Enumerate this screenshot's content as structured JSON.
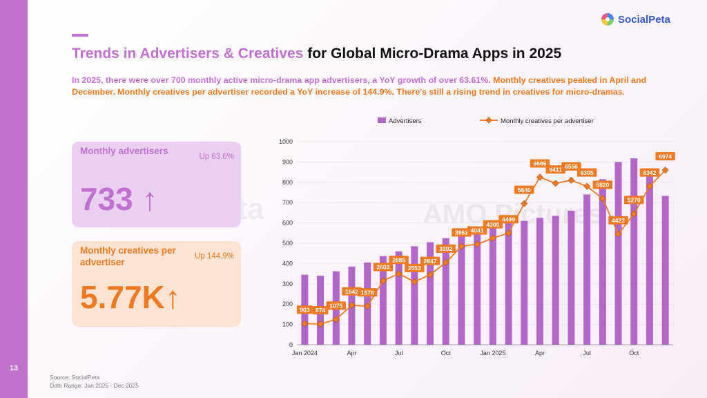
{
  "page_number": "13",
  "brand": {
    "name": "SocialPeta",
    "color": "#3458c8"
  },
  "colors": {
    "accent_purple": "#c071cf",
    "accent_orange": "#f07a22"
  },
  "title": {
    "part1": "Trends in Advertisers & Creatives",
    "part2": " for Global Micro-Drama Apps in 2025"
  },
  "subtitle": {
    "part1": "In 2025, there were over 700 monthly active micro-drama app advertisers, a YoY growth of over 63.61%.",
    "part2": " Monthly creatives peaked in April and December. Monthly creatives per advertiser recorded a YoY increase of 144.9%. There's still a rising trend in creatives for micro-dramas."
  },
  "cards": {
    "advertisers": {
      "label": "Monthly advertisers",
      "growth": "Up 63.6%",
      "value": "733 ↑"
    },
    "creatives": {
      "label": "Monthly creatives per advertiser",
      "growth": "Up 144.9%",
      "value": "5.77K↑"
    }
  },
  "watermarks": {
    "left": "SocialPeta",
    "right": "AMO Pictures"
  },
  "source": {
    "line1": "Source: SocialPeta",
    "line2": "Date Range: Jan 2025 - Dec 2025"
  },
  "chart_data": {
    "type": "bar",
    "title": "",
    "xlabel": "",
    "ylabel": "",
    "ylim": [
      0,
      1000
    ],
    "yticks": [
      0,
      100,
      200,
      300,
      400,
      500,
      600,
      700,
      800,
      900,
      1000
    ],
    "grid": true,
    "legend_position": "top",
    "x_tick_labels": [
      {
        "index": 0,
        "label": "Jan 2024"
      },
      {
        "index": 3,
        "label": "Apr"
      },
      {
        "index": 6,
        "label": "Jul"
      },
      {
        "index": 9,
        "label": "Oct"
      },
      {
        "index": 12,
        "label": "Jan 2025"
      },
      {
        "index": 15,
        "label": "Apr"
      },
      {
        "index": 18,
        "label": "Jul"
      },
      {
        "index": 21,
        "label": "Oct"
      }
    ],
    "categories": [
      "Jan 2024",
      "Feb 2024",
      "Mar 2024",
      "Apr 2024",
      "May 2024",
      "Jun 2024",
      "Jul 2024",
      "Aug 2024",
      "Sep 2024",
      "Oct 2024",
      "Nov 2024",
      "Dec 2024",
      "Jan 2025",
      "Feb 2025",
      "Mar 2025",
      "Apr 2025",
      "May 2025",
      "Jun 2025",
      "Jul 2025",
      "Aug 2025",
      "Sep 2025",
      "Oct 2025",
      "Nov 2025",
      "Dec 2025"
    ],
    "series": [
      {
        "name": "Advertisers",
        "type": "bar",
        "color": "#b366c9",
        "values": [
          345,
          340,
          362,
          385,
          405,
          437,
          460,
          485,
          505,
          525,
          550,
          570,
          578,
          600,
          610,
          625,
          635,
          660,
          740,
          815,
          900,
          918,
          860,
          733
        ]
      },
      {
        "name": "Monthly creatives per advertiser",
        "type": "line",
        "color": "#f07a22",
        "values": [
          903,
          874,
          1075,
          1642,
          1578,
          2603,
          2885,
          2553,
          2847,
          3302,
          3962,
          4041,
          4300,
          4499,
          5640,
          6686,
          6411,
          6556,
          6305,
          5820,
          4422,
          5270,
          6342,
          6974
        ],
        "labels": [
          "903",
          "874",
          "1075",
          "1642",
          "1578",
          "2603",
          "2885",
          "2553",
          "2847",
          "3302",
          "3962",
          "4041",
          "4300",
          "4499",
          "5640",
          "6686",
          "6411",
          "6556",
          "6305",
          "5820",
          "4422",
          "5270",
          "6342",
          "6974"
        ],
        "display_y": [
          105,
          102,
          125,
          195,
          190,
          315,
          350,
          310,
          345,
          405,
          485,
          495,
          525,
          550,
          695,
          825,
          795,
          810,
          780,
          720,
          545,
          645,
          780,
          860
        ]
      }
    ]
  }
}
